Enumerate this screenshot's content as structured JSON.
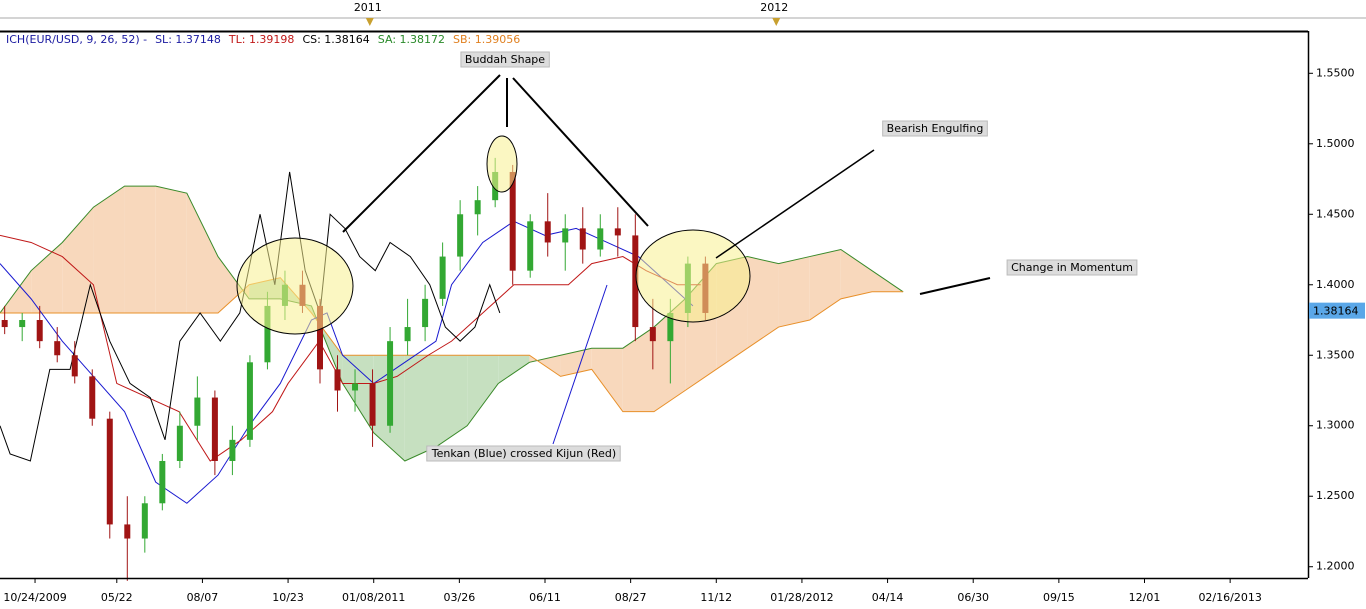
{
  "chart_data": {
    "type": "candlestick",
    "header": [
      {
        "text": "ICH(EUR/USD, 9, 26, 52) -",
        "color": "#1a1aa0"
      },
      {
        "text": "SL: 1.37148",
        "color": "#1a1aa0"
      },
      {
        "text": "TL: 1.39198",
        "color": "#c01818"
      },
      {
        "text": "CS: 1.38164",
        "color": "#000000"
      },
      {
        "text": "SA: 1.38172",
        "color": "#2a8a2a"
      },
      {
        "text": "SB: 1.39056",
        "color": "#e08020"
      }
    ],
    "xlim": [
      0,
      168
    ],
    "ylim": [
      1.192,
      1.58
    ],
    "xticks": [
      {
        "value": 4.5,
        "label": "10/24/2009"
      },
      {
        "value": 15,
        "label": "05/22"
      },
      {
        "value": 26,
        "label": "08/07"
      },
      {
        "value": 37,
        "label": "10/23"
      },
      {
        "value": 48,
        "label": "01/08/2011"
      },
      {
        "value": 59,
        "label": "03/26"
      },
      {
        "value": 70,
        "label": "06/11"
      },
      {
        "value": 81,
        "label": "08/27"
      },
      {
        "value": 92,
        "label": "11/12"
      },
      {
        "value": 103,
        "label": "01/28/2012"
      },
      {
        "value": 114,
        "label": "04/14"
      },
      {
        "value": 125,
        "label": "06/30"
      },
      {
        "value": 136,
        "label": "09/15"
      },
      {
        "value": 147,
        "label": "12/01"
      },
      {
        "value": 158,
        "label": "02/16/2013"
      }
    ],
    "top_ticks": [
      {
        "value": 47.5,
        "label": "2011"
      },
      {
        "value": 99.7,
        "label": "2012"
      }
    ],
    "yticks": [
      {
        "value": 1.2,
        "label": "1.2000"
      },
      {
        "value": 1.25,
        "label": "1.2500"
      },
      {
        "value": 1.3,
        "label": "1.3000"
      },
      {
        "value": 1.35,
        "label": "1.3500"
      },
      {
        "value": 1.4,
        "label": "1.4000"
      },
      {
        "value": 1.45,
        "label": "1.4500"
      },
      {
        "value": 1.5,
        "label": "1.5000"
      },
      {
        "value": 1.55,
        "label": "1.5500"
      }
    ],
    "last_price": 1.38164,
    "last_price_color": "#5aa7e8",
    "annotations": [
      "Buddah Shape",
      "Bearish Engulfing",
      "Change in Momentum",
      "Tenkan (Blue) crossed Kijun (Red)"
    ],
    "cloud": {
      "x": [
        0,
        4,
        8,
        12,
        16,
        20,
        24,
        28,
        32,
        36,
        40,
        44,
        48,
        52,
        56,
        60,
        64,
        68,
        72,
        76,
        80,
        84,
        88,
        92,
        96,
        100,
        104,
        108,
        112,
        116
      ],
      "senkou_a": [
        1.38,
        1.41,
        1.43,
        1.455,
        1.47,
        1.47,
        1.465,
        1.42,
        1.39,
        1.39,
        1.385,
        1.33,
        1.295,
        1.275,
        1.285,
        1.3,
        1.33,
        1.345,
        1.35,
        1.355,
        1.355,
        1.37,
        1.39,
        1.415,
        1.42,
        1.415,
        1.42,
        1.425,
        1.41,
        1.395
      ],
      "senkou_b": [
        1.38,
        1.38,
        1.38,
        1.38,
        1.38,
        1.38,
        1.38,
        1.38,
        1.4,
        1.405,
        1.38,
        1.35,
        1.35,
        1.35,
        1.35,
        1.35,
        1.35,
        1.35,
        1.335,
        1.34,
        1.31,
        1.31,
        1.325,
        1.34,
        1.355,
        1.37,
        1.375,
        1.39,
        1.395,
        1.395
      ],
      "a_color": "#3a8a2a",
      "b_color": "#e8902a",
      "fill_a_above": "#f8d8bc",
      "fill_b_above": "#c6e0c0"
    },
    "lines": [
      {
        "color": "#1a1ad0",
        "x": [
          0,
          4,
          8,
          12,
          16,
          20,
          24,
          28,
          32,
          36,
          40,
          42,
          44,
          48,
          52,
          56,
          58,
          62,
          66,
          70,
          74,
          78,
          82,
          86,
          89
        ],
        "values": [
          1.415,
          1.39,
          1.36,
          1.335,
          1.31,
          1.26,
          1.245,
          1.265,
          1.3,
          1.33,
          1.375,
          1.38,
          1.35,
          1.33,
          1.345,
          1.36,
          1.4,
          1.43,
          1.445,
          1.435,
          1.44,
          1.43,
          1.42,
          1.4,
          1.385
        ]
      },
      {
        "color": "#c01818",
        "x": [
          0,
          4,
          8,
          12,
          15,
          19,
          23,
          27,
          31,
          35,
          37,
          41,
          44,
          48,
          51,
          55,
          58,
          62,
          66,
          69,
          73,
          76,
          80,
          83,
          87,
          90
        ],
        "values": [
          1.435,
          1.43,
          1.42,
          1.4,
          1.33,
          1.32,
          1.31,
          1.275,
          1.29,
          1.31,
          1.33,
          1.36,
          1.33,
          1.33,
          1.335,
          1.35,
          1.36,
          1.38,
          1.4,
          1.4,
          1.4,
          1.415,
          1.42,
          1.41,
          1.4,
          1.4
        ]
      },
      {
        "color": "#000000",
        "x": [
          0,
          1.3,
          3.9,
          6.4,
          9,
          11.6,
          14.1,
          16.7,
          19.3,
          21.2,
          23.1,
          25.7,
          28.3,
          30.8,
          33.4,
          35.3,
          37.2,
          39.2,
          41.1,
          42.4,
          44.3,
          46.2,
          48.2,
          50.1,
          52.7,
          55.2,
          57.2,
          59.1,
          61,
          62.9,
          64.2
        ],
        "values": [
          1.3,
          1.28,
          1.275,
          1.34,
          1.34,
          1.4,
          1.36,
          1.33,
          1.32,
          1.29,
          1.36,
          1.38,
          1.36,
          1.38,
          1.45,
          1.4,
          1.48,
          1.41,
          1.38,
          1.45,
          1.44,
          1.42,
          1.41,
          1.43,
          1.42,
          1.4,
          1.37,
          1.36,
          1.37,
          1.4,
          1.38
        ]
      }
    ],
    "candles": {
      "up_color": "#33a833",
      "down_color": "#a01414",
      "x": [
        0.6,
        2.85,
        5.1,
        7.35,
        9.6,
        11.85,
        14.1,
        16.35,
        18.6,
        20.85,
        23.1,
        25.35,
        27.6,
        29.85,
        32.1,
        34.35,
        36.6,
        38.85,
        41.1,
        43.35,
        45.6,
        47.85,
        50.1,
        52.35,
        54.6,
        56.85,
        59.1,
        61.35,
        63.6,
        65.85,
        68.1,
        70.35,
        72.6,
        74.85,
        77.1,
        79.35,
        81.6,
        83.85,
        86.1,
        88.35,
        90.6
      ],
      "open": [
        1.375,
        1.37,
        1.375,
        1.36,
        1.35,
        1.335,
        1.305,
        1.23,
        1.22,
        1.245,
        1.275,
        1.3,
        1.32,
        1.275,
        1.29,
        1.345,
        1.385,
        1.4,
        1.385,
        1.34,
        1.325,
        1.33,
        1.3,
        1.36,
        1.37,
        1.39,
        1.42,
        1.45,
        1.46,
        1.48,
        1.41,
        1.445,
        1.43,
        1.44,
        1.425,
        1.44,
        1.435,
        1.37,
        1.36,
        1.38,
        1.415
      ],
      "high": [
        1.385,
        1.38,
        1.385,
        1.37,
        1.36,
        1.34,
        1.31,
        1.25,
        1.25,
        1.28,
        1.31,
        1.335,
        1.325,
        1.3,
        1.35,
        1.395,
        1.41,
        1.41,
        1.39,
        1.35,
        1.34,
        1.34,
        1.37,
        1.39,
        1.4,
        1.43,
        1.46,
        1.47,
        1.49,
        1.485,
        1.45,
        1.465,
        1.45,
        1.455,
        1.45,
        1.455,
        1.45,
        1.39,
        1.39,
        1.42,
        1.42
      ],
      "low": [
        1.365,
        1.36,
        1.355,
        1.345,
        1.33,
        1.3,
        1.22,
        1.19,
        1.21,
        1.24,
        1.27,
        1.29,
        1.265,
        1.265,
        1.285,
        1.34,
        1.375,
        1.38,
        1.33,
        1.31,
        1.31,
        1.285,
        1.295,
        1.35,
        1.36,
        1.385,
        1.41,
        1.435,
        1.455,
        1.4,
        1.405,
        1.42,
        1.41,
        1.415,
        1.42,
        1.42,
        1.36,
        1.34,
        1.33,
        1.37,
        1.375
      ],
      "close": [
        1.37,
        1.375,
        1.36,
        1.35,
        1.335,
        1.305,
        1.23,
        1.22,
        1.245,
        1.275,
        1.3,
        1.32,
        1.275,
        1.29,
        1.345,
        1.385,
        1.4,
        1.385,
        1.34,
        1.325,
        1.33,
        1.3,
        1.36,
        1.37,
        1.39,
        1.42,
        1.45,
        1.46,
        1.48,
        1.41,
        1.445,
        1.43,
        1.44,
        1.425,
        1.44,
        1.435,
        1.37,
        1.36,
        1.38,
        1.415,
        1.38
      ]
    }
  }
}
